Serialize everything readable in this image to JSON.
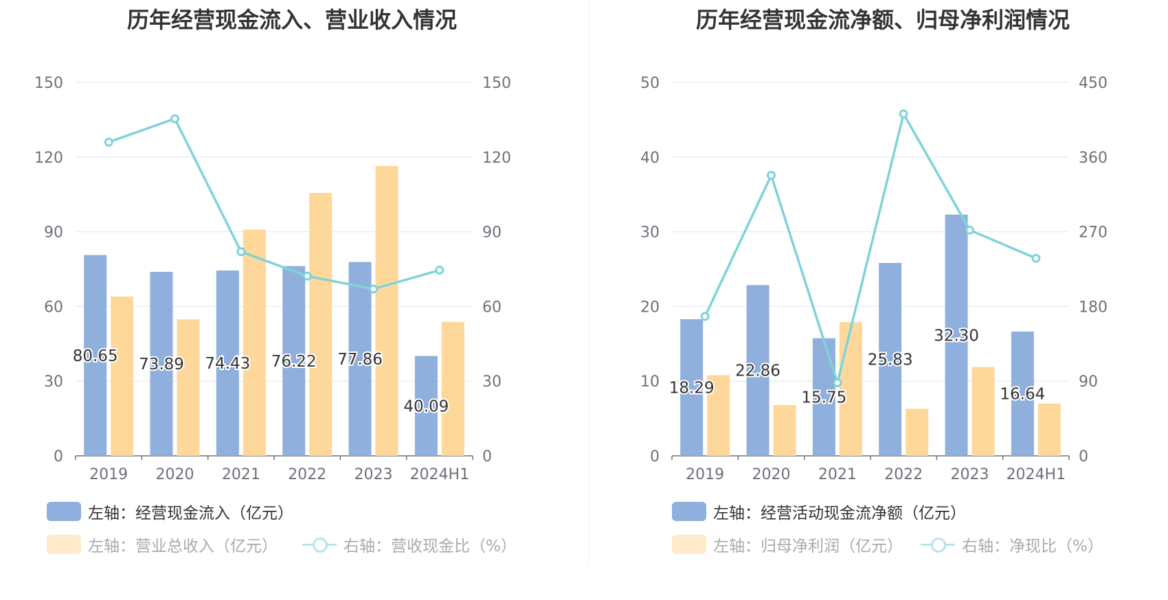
{
  "colors": {
    "bar_primary": "#8fafdc",
    "bar_secondary": "#fed89a",
    "line": "#7fd3d8",
    "grid": "#e0e6f1",
    "axis": "#6e7079",
    "legend_dim_text": "#aaaaaa",
    "legend_text": "#333333",
    "legend_dim_bar": "#ffebc9",
    "legend_dim_line": "#b6e6e9"
  },
  "chart_data": [
    {
      "type": "bar",
      "title": "历年经营现金流入、营业收入情况",
      "categories": [
        "2019",
        "2020",
        "2021",
        "2022",
        "2023",
        "2024H1"
      ],
      "left_axis": {
        "ticks": [
          "0",
          "30",
          "60",
          "90",
          "120",
          "150"
        ],
        "ylim": [
          0,
          150
        ]
      },
      "right_axis": {
        "ticks": [
          "0",
          "30",
          "60",
          "90",
          "120",
          "150"
        ],
        "ylim": [
          0,
          150
        ]
      },
      "series": [
        {
          "name": "左轴：经营现金流入（亿元）",
          "type": "bar",
          "axis": "left",
          "values": [
            80.65,
            73.89,
            74.43,
            76.22,
            77.86,
            40.09
          ],
          "labels": [
            "80.65",
            "73.89",
            "74.43",
            "76.22",
            "77.86",
            "40.09"
          ]
        },
        {
          "name": "左轴：营业总收入（亿元）",
          "type": "bar",
          "axis": "left",
          "values": [
            64.0,
            54.8,
            90.9,
            105.6,
            116.4,
            53.8
          ]
        },
        {
          "name": "右轴：营收现金比（%）",
          "type": "line",
          "axis": "right",
          "values": [
            126.0,
            135.4,
            82.0,
            72.2,
            67.0,
            74.6
          ]
        }
      ],
      "legend": [
        {
          "label": "左轴：经营现金流入（亿元）",
          "kind": "bar-primary",
          "active": true
        },
        {
          "label": "左轴：营业总收入（亿元）",
          "kind": "bar-secondary",
          "active": false
        },
        {
          "label": "右轴：营收现金比（%）",
          "kind": "line",
          "active": false
        }
      ]
    },
    {
      "type": "bar",
      "title": "历年经营现金流净额、归母净利润情况",
      "categories": [
        "2019",
        "2020",
        "2021",
        "2022",
        "2023",
        "2024H1"
      ],
      "left_axis": {
        "ticks": [
          "0",
          "10",
          "20",
          "30",
          "40",
          "50"
        ],
        "ylim": [
          0,
          50
        ]
      },
      "right_axis": {
        "ticks": [
          "0",
          "90",
          "180",
          "270",
          "360",
          "450"
        ],
        "ylim": [
          0,
          450
        ]
      },
      "series": [
        {
          "name": "左轴：经营活动现金流净额（亿元）",
          "type": "bar",
          "axis": "left",
          "values": [
            18.29,
            22.86,
            15.75,
            25.83,
            32.3,
            16.64
          ],
          "labels": [
            "18.29",
            "22.86",
            "15.75",
            "25.83",
            "32.30",
            "16.64"
          ]
        },
        {
          "name": "左轴：归母净利润（亿元）",
          "type": "bar",
          "axis": "left",
          "values": [
            10.8,
            6.8,
            17.9,
            6.3,
            11.9,
            7.0
          ]
        },
        {
          "name": "右轴：净现比（%）",
          "type": "line",
          "axis": "right",
          "values": [
            168,
            338,
            88,
            412,
            272,
            238
          ]
        }
      ],
      "legend": [
        {
          "label": "左轴：经营活动现金流净额（亿元）",
          "kind": "bar-primary",
          "active": true
        },
        {
          "label": "左轴：归母净利润（亿元）",
          "kind": "bar-secondary",
          "active": false
        },
        {
          "label": "右轴：净现比（%）",
          "kind": "line",
          "active": false
        }
      ]
    }
  ]
}
